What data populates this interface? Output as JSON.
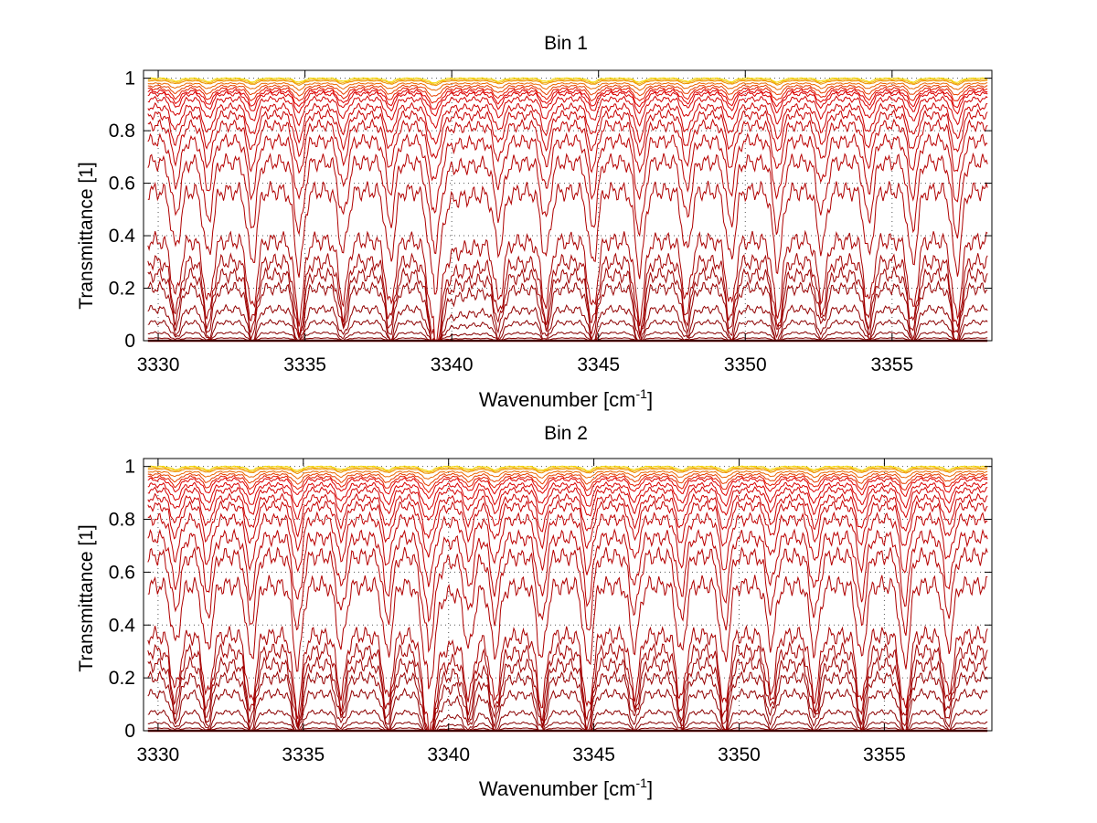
{
  "chart_data": [
    {
      "type": "line",
      "title": "Bin 1",
      "xlabel": "Wavenumber [cm",
      "xlabel_sup": "-1",
      "xlabel_end": "]",
      "ylabel": "Transmittance [1]",
      "xlim": [
        3329.5,
        3358.4
      ],
      "ylim": [
        0,
        1.03
      ],
      "xticks": [
        3330,
        3335,
        3340,
        3345,
        3350,
        3355
      ],
      "xtick_labels": [
        "3330",
        "3335",
        "3340",
        "3345",
        "3350",
        "3355"
      ],
      "yticks": [
        0,
        0.2,
        0.4,
        0.6,
        0.8,
        1
      ],
      "ytick_labels": [
        "0",
        "0.2",
        "0.4",
        "0.6",
        "0.8",
        "1"
      ],
      "grid": true,
      "series_count": 24,
      "baseline_levels": [
        0.0,
        0.01,
        0.03,
        0.07,
        0.12,
        0.2,
        0.25,
        0.3,
        0.38,
        0.57,
        0.68,
        0.76,
        0.82,
        0.86,
        0.89,
        0.92,
        0.94,
        0.95,
        0.96,
        0.97,
        0.98,
        0.99,
        0.995,
        1.0
      ],
      "absorption_lines": [
        3330.6,
        3331.7,
        3333.2,
        3334.8,
        3336.3,
        3337.9,
        3339.4,
        3341.6,
        3343.2,
        3344.8,
        3346.4,
        3348.0,
        3349.5,
        3351.1,
        3352.6,
        3354.2,
        3355.7,
        3357.2
      ],
      "strong_line": 3339.4,
      "color_low": "#7a0000",
      "color_high": "#f5d800"
    },
    {
      "type": "line",
      "title": "Bin 2",
      "xlabel": "Wavenumber [cm",
      "xlabel_sup": "-1",
      "xlabel_end": "]",
      "ylabel": "Transmittance [1]",
      "xlim": [
        3329.5,
        3358.7
      ],
      "ylim": [
        0,
        1.03
      ],
      "xticks": [
        3330,
        3335,
        3340,
        3345,
        3350,
        3355
      ],
      "xtick_labels": [
        "3330",
        "3335",
        "3340",
        "3345",
        "3350",
        "3355"
      ],
      "yticks": [
        0,
        0.2,
        0.4,
        0.6,
        0.8,
        1
      ],
      "ytick_labels": [
        "0",
        "0.2",
        "0.4",
        "0.6",
        "0.8",
        "1"
      ],
      "grid": true,
      "series_count": 24,
      "baseline_levels": [
        0.0,
        0.01,
        0.03,
        0.07,
        0.14,
        0.2,
        0.25,
        0.3,
        0.36,
        0.55,
        0.66,
        0.73,
        0.8,
        0.85,
        0.88,
        0.91,
        0.93,
        0.95,
        0.96,
        0.97,
        0.98,
        0.99,
        0.995,
        1.0
      ],
      "absorption_lines": [
        3330.6,
        3331.7,
        3333.2,
        3334.8,
        3336.3,
        3337.9,
        3339.3,
        3340.7,
        3341.6,
        3343.2,
        3344.8,
        3346.4,
        3348.0,
        3349.5,
        3351.1,
        3352.6,
        3354.2,
        3355.7,
        3357.2
      ],
      "strong_line": 3339.3,
      "color_low": "#7a0000",
      "color_high": "#f5d800"
    }
  ]
}
